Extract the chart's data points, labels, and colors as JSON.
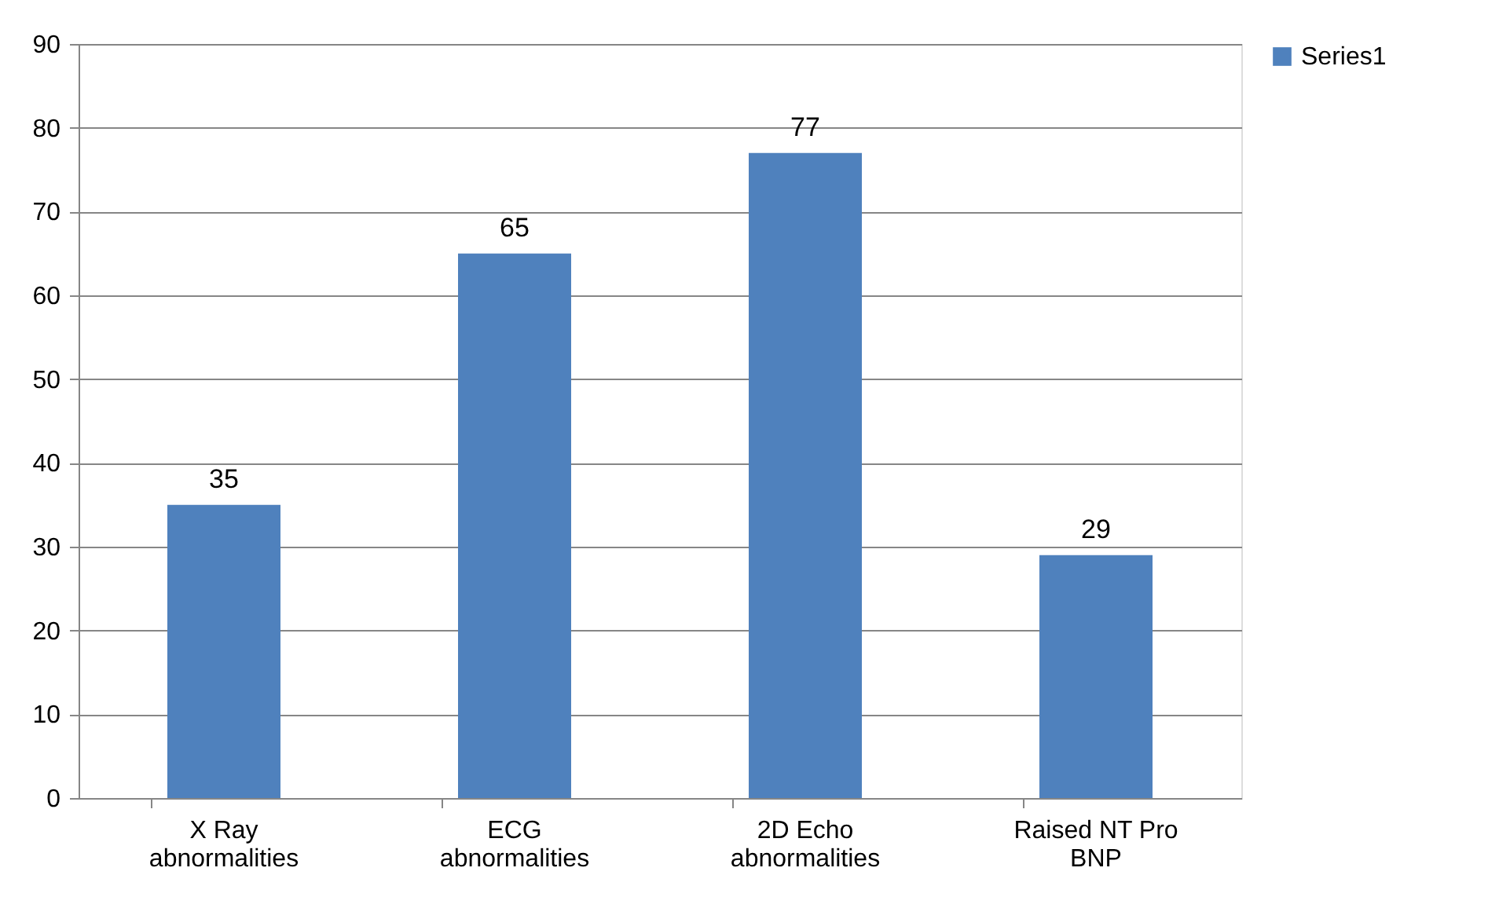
{
  "chart_data": {
    "type": "bar",
    "categories": [
      "X Ray abnormalities",
      "ECG abnormalities",
      "2D Echo abnormalities",
      "Raised NT Pro BNP"
    ],
    "series": [
      {
        "name": "Series1",
        "color": "#4f81bd",
        "values": [
          35,
          65,
          77,
          29
        ]
      }
    ],
    "data_labels": true,
    "ylim": [
      0,
      90
    ],
    "yticks": [
      0,
      10,
      20,
      30,
      40,
      50,
      60,
      70,
      80,
      90
    ],
    "grid": "y",
    "legend": "right"
  }
}
